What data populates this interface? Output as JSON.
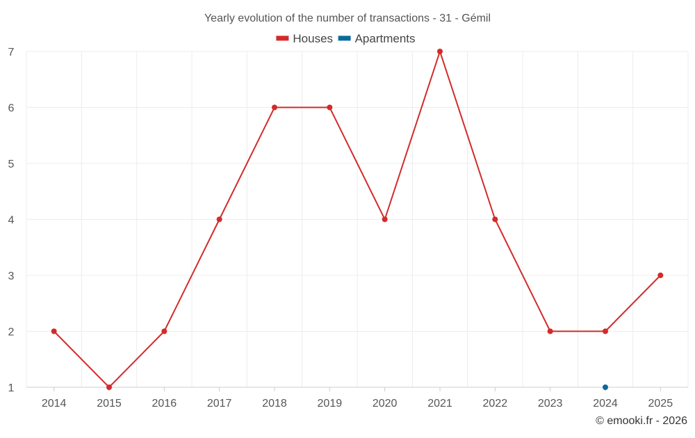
{
  "chart_data": {
    "type": "line",
    "title": "Yearly evolution of the number of transactions - 31 - Gémil",
    "xlabel": "",
    "ylabel": "",
    "categories": [
      "2014",
      "2015",
      "2016",
      "2017",
      "2018",
      "2019",
      "2020",
      "2021",
      "2022",
      "2023",
      "2024",
      "2025"
    ],
    "ylim": [
      1,
      7
    ],
    "yticks": [
      1,
      2,
      3,
      4,
      5,
      6,
      7
    ],
    "grid": true,
    "legend_position": "top-center",
    "series": [
      {
        "name": "Houses",
        "color": "#d32a2a",
        "values": [
          2,
          1,
          2,
          4,
          6,
          6,
          4,
          7,
          4,
          2,
          2,
          3
        ]
      },
      {
        "name": "Apartments",
        "color": "#0b6a9a",
        "values": [
          null,
          null,
          null,
          null,
          null,
          null,
          null,
          null,
          null,
          null,
          1,
          null
        ]
      }
    ]
  },
  "credit": "© emooki.fr - 2026"
}
